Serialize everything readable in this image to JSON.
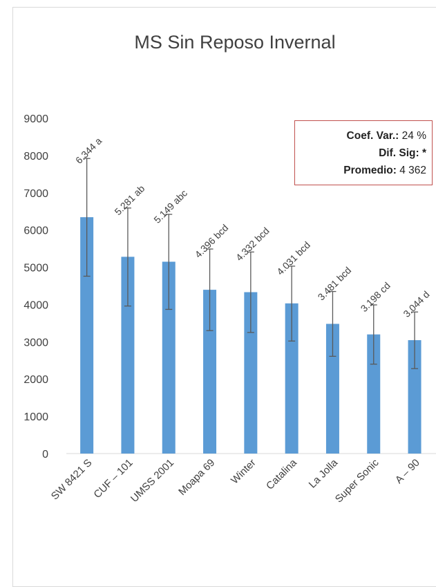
{
  "chart_data": {
    "type": "bar",
    "title": "MS Sin Reposo Invernal",
    "xlabel": "",
    "ylabel": "",
    "ylim": [
      0,
      9000
    ],
    "yticks": [
      0,
      1000,
      2000,
      3000,
      4000,
      5000,
      6000,
      7000,
      8000,
      9000
    ],
    "grid": false,
    "categories": [
      "SW 8421 S",
      "CUF – 101",
      "UMSS 2001",
      "Moapa 69",
      "Winter",
      "Catalina",
      "La Jolla",
      "Super Sonic",
      "A – 90"
    ],
    "values": [
      6344,
      5281,
      5149,
      4396,
      4332,
      4031,
      3481,
      3198,
      3044
    ],
    "error_low": [
      4760,
      3960,
      3870,
      3300,
      3250,
      3020,
      2610,
      2400,
      2280
    ],
    "error_high": [
      7920,
      6590,
      6420,
      5490,
      5410,
      5030,
      4350,
      3990,
      3800
    ],
    "data_labels": [
      "6.344 a",
      "5.281 ab",
      "5.149 abc",
      "4.396 bcd",
      "4.332 bcd",
      "4.031 bcd",
      "3.481 bcd",
      "3.198 cd",
      "3.044 d"
    ],
    "bar_color": "#5b9bd5",
    "error_bar_color": "#595959"
  },
  "stats_box": {
    "coef_label": "Coef. Var.:",
    "coef_value": "24 %",
    "dif_label": "Dif. Sig: *",
    "prom_label": "Promedio:",
    "prom_value": "4 362",
    "border_color": "#c0504d"
  }
}
